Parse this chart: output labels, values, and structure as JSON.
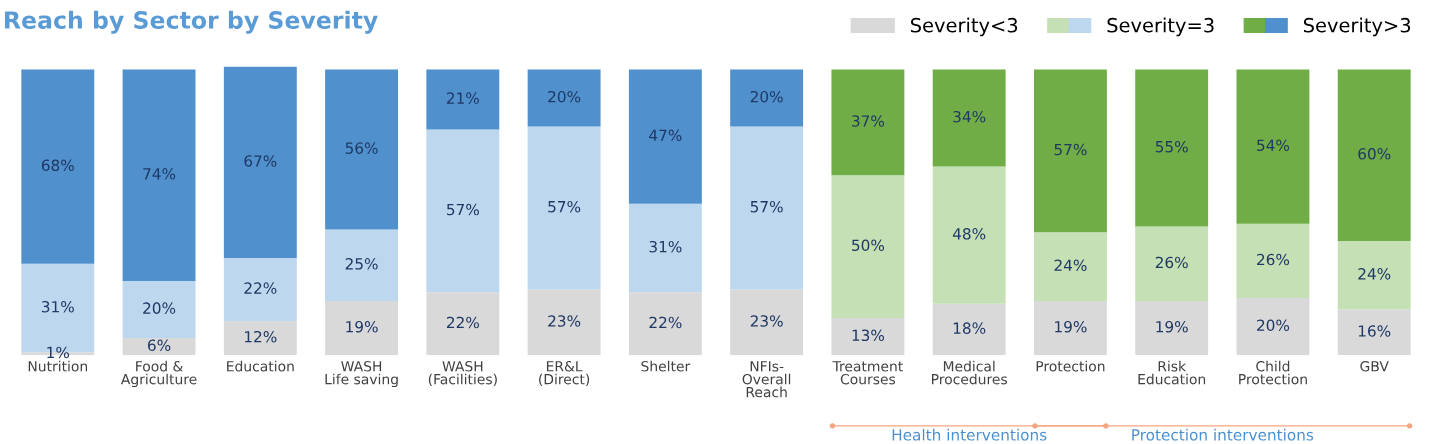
{
  "chart_data": {
    "type": "bar",
    "title": "Reach by Sector by Severity",
    "stacked": true,
    "data_labels": true,
    "legend": "top right",
    "grid": false,
    "categories": [
      "Nutrition",
      "Food &\nAgriculture",
      "Education",
      "WASH\nLife saving",
      "WASH\n(Facilities)",
      "ER&L\n(Direct)",
      "Shelter",
      "NFIs-\nOverall\nReach",
      "Treatment\nCourses",
      "Medical\nProcedures",
      "Protection",
      "Risk\nEducation",
      "Child\nProtection",
      "GBV"
    ],
    "series": [
      {
        "name": "Severity<3",
        "color": "#d9d9d9",
        "values": [
          1,
          6,
          12,
          19,
          22,
          23,
          22,
          23,
          13,
          18,
          19,
          19,
          20,
          16
        ],
        "value_labels": [
          "1%",
          "6%",
          "12%",
          "19%",
          "22%",
          "23%",
          "22%",
          "23%",
          "13%",
          "18%",
          "19%",
          "19%",
          "20%",
          "16%"
        ]
      },
      {
        "name": "Severity=3",
        "color": "#c5e0b4",
        "colors": [
          "#bdd7ee",
          "#bdd7ee",
          "#bdd7ee",
          "#bdd7ee",
          "#bdd7ee",
          "#bdd7ee",
          "#bdd7ee",
          "#bdd7ee",
          "#c5e0b4",
          "#c5e0b4",
          "#c5e0b4",
          "#c5e0b4",
          "#c5e0b4",
          "#c5e0b4"
        ],
        "values": [
          31,
          20,
          22,
          25,
          57,
          57,
          31,
          57,
          50,
          48,
          24,
          26,
          26,
          24
        ],
        "value_labels": [
          "31%",
          "20%",
          "22%",
          "25%",
          "57%",
          "57%",
          "31%",
          "57%",
          "50%",
          "48%",
          "24%",
          "26%",
          "26%",
          "24%"
        ]
      },
      {
        "name": "Severity>3",
        "color": "#70ad47",
        "colors": [
          "#4f90cd",
          "#4f90cd",
          "#4f90cd",
          "#4f90cd",
          "#4f90cd",
          "#4f90cd",
          "#4f90cd",
          "#4f90cd",
          "#70ad47",
          "#70ad47",
          "#70ad47",
          "#70ad47",
          "#70ad47",
          "#70ad47"
        ],
        "values": [
          68,
          74,
          67,
          56,
          21,
          20,
          47,
          20,
          37,
          34,
          57,
          55,
          54,
          60
        ],
        "value_labels": [
          "68%",
          "74%",
          "67%",
          "56%",
          "21%",
          "20%",
          "47%",
          "20%",
          "37%",
          "34%",
          "57%",
          "55%",
          "54%",
          "60%"
        ]
      }
    ],
    "annotations": [
      "Health interventions",
      "Protection interventions"
    ]
  }
}
